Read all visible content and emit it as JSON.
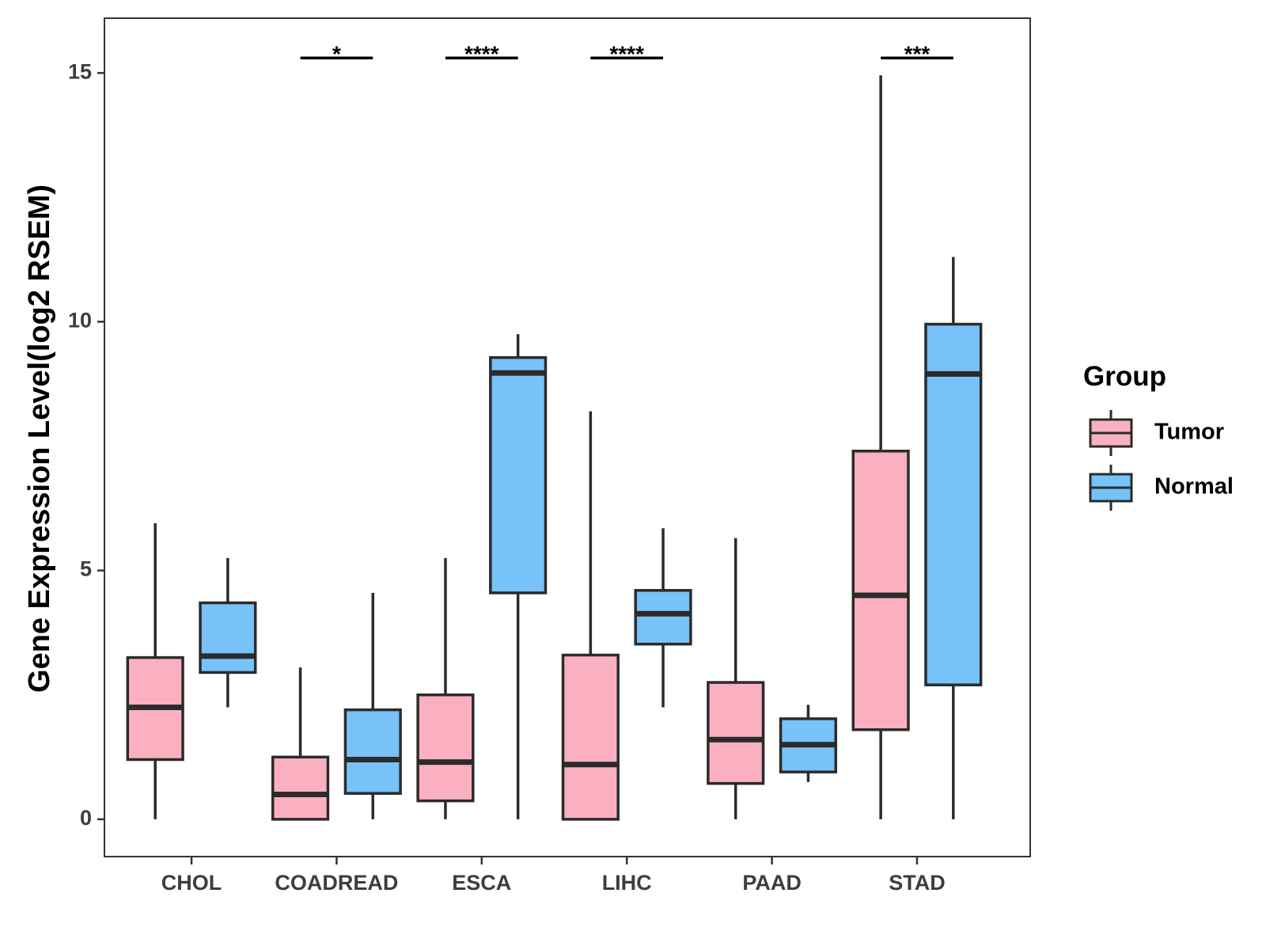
{
  "chart_data": {
    "type": "boxplot",
    "title": "",
    "xlabel": "",
    "ylabel": "Gene Expression Level(log2 RSEM)",
    "ylim": [
      -0.75,
      16.1
    ],
    "yticks": [
      0,
      5,
      10,
      15
    ],
    "grid": false,
    "categories": [
      "CHOL",
      "COADREAD",
      "ESCA",
      "LIHC",
      "PAAD",
      "STAD"
    ],
    "legend": {
      "title": "Group",
      "position": "right",
      "entries": [
        "Tumor",
        "Normal"
      ]
    },
    "series": [
      {
        "name": "Tumor",
        "color": "#FBB0C2",
        "boxes": [
          {
            "category": "CHOL",
            "min": 0.0,
            "q1": 1.2,
            "median": 2.25,
            "q3": 3.25,
            "max": 5.95
          },
          {
            "category": "COADREAD",
            "min": 0.0,
            "q1": 0.0,
            "median": 0.5,
            "q3": 1.25,
            "max": 3.05
          },
          {
            "category": "ESCA",
            "min": 0.0,
            "q1": 0.37,
            "median": 1.15,
            "q3": 2.5,
            "max": 5.25
          },
          {
            "category": "LIHC",
            "min": 0.0,
            "q1": 0.0,
            "median": 1.1,
            "q3": 3.3,
            "max": 8.2
          },
          {
            "category": "PAAD",
            "min": 0.0,
            "q1": 0.72,
            "median": 1.6,
            "q3": 2.75,
            "max": 5.65
          },
          {
            "category": "STAD",
            "min": 0.0,
            "q1": 1.8,
            "median": 4.5,
            "q3": 7.4,
            "max": 14.95
          }
        ]
      },
      {
        "name": "Normal",
        "color": "#77C2F8",
        "boxes": [
          {
            "category": "CHOL",
            "min": 2.25,
            "q1": 2.95,
            "median": 3.28,
            "q3": 4.35,
            "max": 5.25
          },
          {
            "category": "COADREAD",
            "min": 0.0,
            "q1": 0.52,
            "median": 1.2,
            "q3": 2.2,
            "max": 4.55
          },
          {
            "category": "ESCA",
            "min": 0.0,
            "q1": 4.55,
            "median": 8.97,
            "q3": 9.28,
            "max": 9.75
          },
          {
            "category": "LIHC",
            "min": 2.25,
            "q1": 3.52,
            "median": 4.13,
            "q3": 4.6,
            "max": 5.85
          },
          {
            "category": "PAAD",
            "min": 0.75,
            "q1": 0.95,
            "median": 1.5,
            "q3": 2.02,
            "max": 2.3
          },
          {
            "category": "STAD",
            "min": 0.0,
            "q1": 2.7,
            "median": 8.95,
            "q3": 9.95,
            "max": 11.3
          }
        ]
      }
    ],
    "annotations": [
      {
        "category": "COADREAD",
        "label": "*",
        "y": 15.3
      },
      {
        "category": "ESCA",
        "label": "****",
        "y": 15.3
      },
      {
        "category": "LIHC",
        "label": "****",
        "y": 15.3
      },
      {
        "category": "STAD",
        "label": "***",
        "y": 15.3
      }
    ]
  }
}
